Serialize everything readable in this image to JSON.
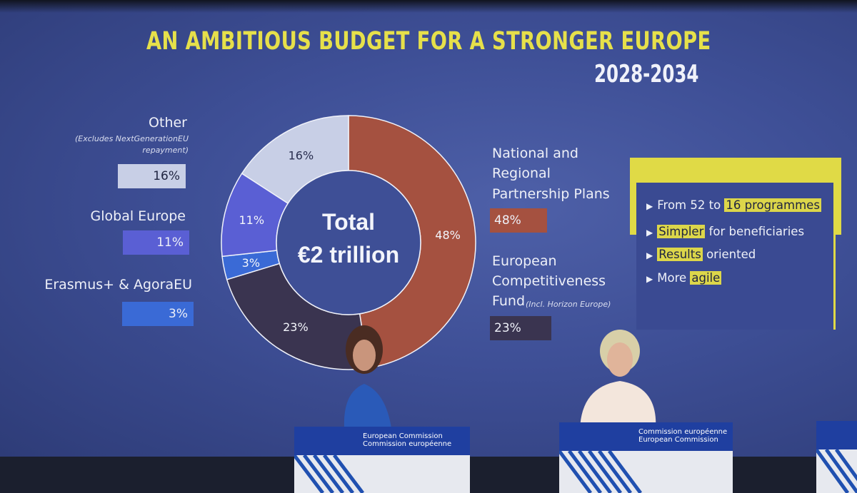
{
  "slide": {
    "title": "AN AMBITIOUS BUDGET FOR A STRONGER EUROPE",
    "years": "2028-2034"
  },
  "chart_data": {
    "type": "pie",
    "center_label": [
      "Total",
      "€2 trillion"
    ],
    "slices": [
      {
        "name": "National and Regional Partnership Plans",
        "value": 48,
        "label": "48%",
        "color": "#a55140"
      },
      {
        "name": "European Competitiveness Fund",
        "value": 23,
        "label": "23%",
        "color": "#3a3450"
      },
      {
        "name": "Erasmus+ & AgoraEU",
        "value": 3,
        "label": "3%",
        "color": "#3a6ad6"
      },
      {
        "name": "Global Europe",
        "value": 11,
        "label": "11%",
        "color": "#5a5fd4"
      },
      {
        "name": "Other",
        "value": 16,
        "label": "16%",
        "color": "#c8cfe6"
      }
    ]
  },
  "legend": {
    "other": {
      "label": "Other",
      "note_line1": "(Excludes NextGenerationEU",
      "note_line2": "repayment)",
      "value": "16%",
      "color": "#c8cfe6"
    },
    "global_europe": {
      "label": "Global Europe",
      "value": "11%",
      "color": "#5a5fd4"
    },
    "erasmus": {
      "label": "Erasmus+ & AgoraEU",
      "value": "3%",
      "color": "#3a6ad6"
    },
    "nrpp": {
      "line1": "National and",
      "line2": "Regional",
      "line3": "Partnership Plans",
      "value": "48%",
      "color": "#a55140"
    },
    "ecf": {
      "line1": "European",
      "line2": "Competitiveness",
      "line3": "Fund",
      "note": "(Incl. Horizon Europe)",
      "value": "23%",
      "color": "#3a3450"
    }
  },
  "highlights": [
    {
      "pre": "From 52 to ",
      "hl": "16 programmes",
      "post": ""
    },
    {
      "pre": "",
      "hl": "Simpler",
      "post": " for beneficiaries"
    },
    {
      "pre": "",
      "hl": "Results",
      "post": " oriented"
    },
    {
      "pre": "More ",
      "hl": "agile",
      "post": ""
    }
  ],
  "podiums": {
    "left_line1": "European Commission",
    "left_line2": "Commission européenne",
    "right_line1": "Commission européenne",
    "right_line2": "European Commission"
  }
}
